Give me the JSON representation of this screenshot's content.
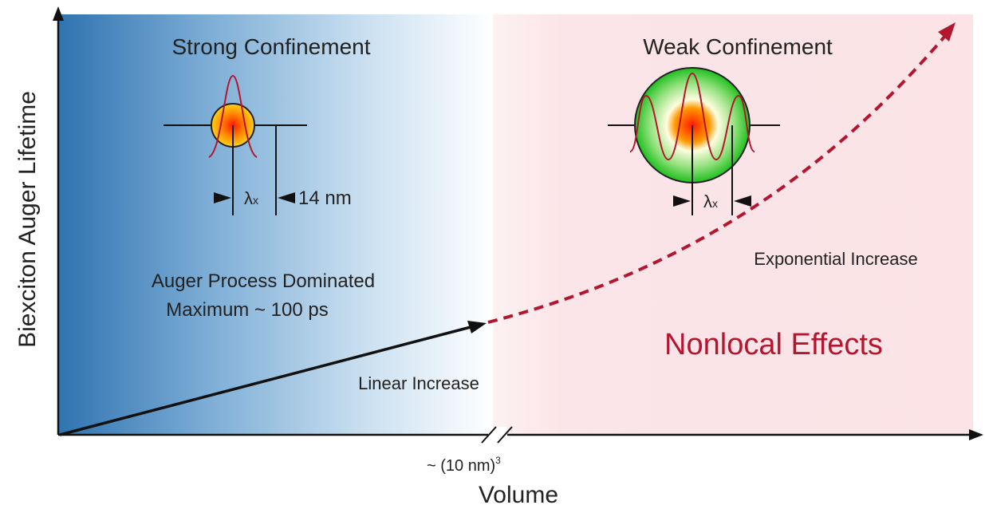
{
  "axes": {
    "y_label": "Biexciton Auger Lifetime",
    "x_label": "Volume",
    "x_break_label": "~ (10 nm)",
    "x_break_exponent": "3"
  },
  "strong": {
    "title": "Strong Confinement",
    "lambda": "λ",
    "lambda_sub": "x",
    "size_label": "14 nm",
    "line1": "Auger Process Dominated",
    "line2": "Maximum ~ 100 ps",
    "trend": "Linear Increase"
  },
  "weak": {
    "title": "Weak Confinement",
    "lambda": "λ",
    "lambda_sub": "x",
    "trend": "Exponential Increase",
    "effect": "Nonlocal Effects"
  }
}
